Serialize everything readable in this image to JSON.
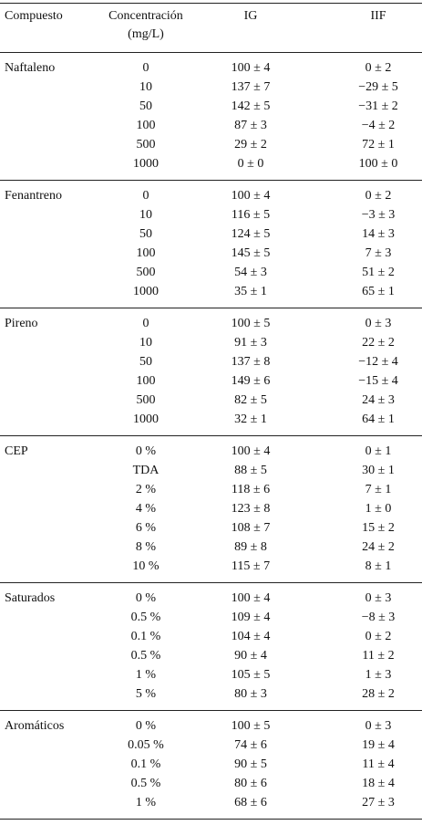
{
  "header": {
    "compound": "Compuesto",
    "concentration": [
      "Concentración",
      "(mg/L)"
    ],
    "ig": "IG",
    "iif": "IIF"
  },
  "groups": [
    {
      "name": "Naftaleno",
      "rows": [
        [
          "0",
          "100 ± 4",
          "0 ± 2"
        ],
        [
          "10",
          "137 ± 7",
          "−29 ± 5"
        ],
        [
          "50",
          "142 ± 5",
          "−31 ± 2"
        ],
        [
          "100",
          "87 ± 3",
          "−4 ± 2"
        ],
        [
          "500",
          "29 ± 2",
          "72 ± 1"
        ],
        [
          "1000",
          "0 ± 0",
          "100 ± 0"
        ]
      ]
    },
    {
      "name": "Fenantreno",
      "rows": [
        [
          "0",
          "100 ± 4",
          "0 ± 2"
        ],
        [
          "10",
          "116 ± 5",
          "−3 ± 3"
        ],
        [
          "50",
          "124 ± 5",
          "14 ± 3"
        ],
        [
          "100",
          "145 ± 5",
          "7 ± 3"
        ],
        [
          "500",
          "54 ± 3",
          "51 ± 2"
        ],
        [
          "1000",
          "35 ± 1",
          "65 ± 1"
        ]
      ]
    },
    {
      "name": "Pireno",
      "rows": [
        [
          "0",
          "100 ± 5",
          "0 ± 3"
        ],
        [
          "10",
          "91 ± 3",
          "22 ± 2"
        ],
        [
          "50",
          "137 ± 8",
          "−12 ± 4"
        ],
        [
          "100",
          "149 ± 6",
          "−15 ± 4"
        ],
        [
          "500",
          "82 ± 5",
          "24 ± 3"
        ],
        [
          "1000",
          "32 ± 1",
          "64 ± 1"
        ]
      ]
    },
    {
      "name": "CEP",
      "rows": [
        [
          "0 %",
          "100 ± 4",
          "0 ± 1"
        ],
        [
          "TDA",
          "88 ± 5",
          "30 ± 1"
        ],
        [
          "2 %",
          "118 ± 6",
          "7 ± 1"
        ],
        [
          "4 %",
          "123 ± 8",
          "1 ± 0"
        ],
        [
          "6 %",
          "108 ± 7",
          "15 ± 2"
        ],
        [
          "8 %",
          "89 ± 8",
          "24 ± 2"
        ],
        [
          "10 %",
          "115 ± 7",
          "8 ± 1"
        ]
      ]
    },
    {
      "name": "Saturados",
      "rows": [
        [
          "0 %",
          "100 ± 4",
          "0 ± 3"
        ],
        [
          "0.5 %",
          "109 ± 4",
          "−8 ± 3"
        ],
        [
          "0.1 %",
          "104 ± 4",
          "0 ± 2"
        ],
        [
          "0.5 %",
          "90 ± 4",
          "11 ± 2"
        ],
        [
          "1 %",
          "105 ± 5",
          "1 ± 3"
        ],
        [
          "5 %",
          "80 ± 3",
          "28 ± 2"
        ]
      ]
    },
    {
      "name": "Aromáticos",
      "rows": [
        [
          "0 %",
          "100 ± 5",
          "0 ± 3"
        ],
        [
          "0.05 %",
          "74 ± 6",
          "19 ± 4"
        ],
        [
          "0.1 %",
          "90 ± 5",
          "11 ± 4"
        ],
        [
          "0.5 %",
          "80 ± 6",
          "18 ± 4"
        ],
        [
          "1 %",
          "68 ± 6",
          "27 ± 3"
        ]
      ]
    }
  ]
}
